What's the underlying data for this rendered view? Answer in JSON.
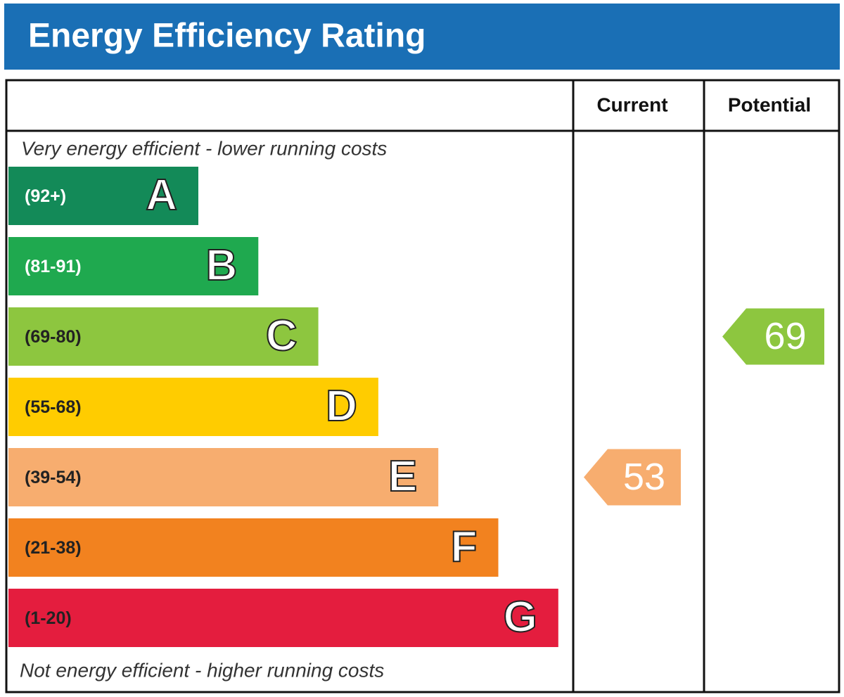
{
  "title": "Energy Efficiency Rating",
  "columns": {
    "current": "Current",
    "potential": "Potential"
  },
  "top_note": "Very energy efficient - lower running costs",
  "bottom_note": "Not energy efficient - higher running costs",
  "bands": [
    {
      "range": "(92+)",
      "letter": "A",
      "color": "#138a58"
    },
    {
      "range": "(81-91)",
      "letter": "B",
      "color": "#1fa94f"
    },
    {
      "range": "(69-80)",
      "letter": "C",
      "color": "#8dc63f"
    },
    {
      "range": "(55-68)",
      "letter": "D",
      "color": "#ffcc00"
    },
    {
      "range": "(39-54)",
      "letter": "E",
      "color": "#f7ad6f"
    },
    {
      "range": "(21-38)",
      "letter": "F",
      "color": "#f2821f"
    },
    {
      "range": "(1-20)",
      "letter": "G",
      "color": "#e41d3e"
    }
  ],
  "current": 53,
  "potential": 69
}
